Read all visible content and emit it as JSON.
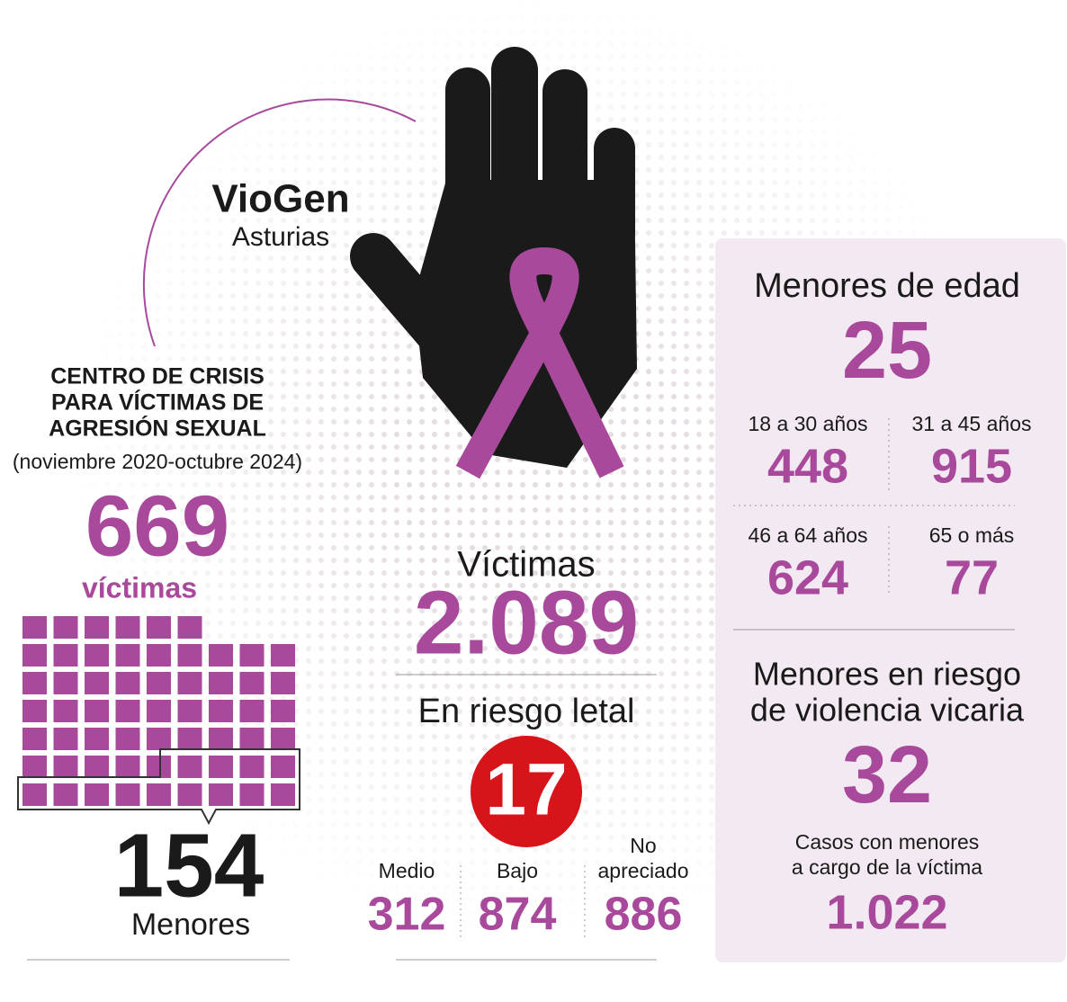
{
  "header": {
    "title": "VioGen",
    "subtitle": "Asturias"
  },
  "crisis_center": {
    "title_lines": [
      "CENTRO DE CRISIS",
      "PARA VÍCTIMAS DE",
      "AGRESIÓN SEXUAL"
    ],
    "period": "(noviembre 2020-octubre 2024)",
    "victims": "669",
    "victims_label": "víctimas",
    "minors": "154",
    "minors_label": "Menores"
  },
  "viogen": {
    "victims_label": "Víctimas",
    "victims": "2.089",
    "lethal_risk_label": "En riesgo letal",
    "lethal_risk": "17",
    "risk_levels": [
      {
        "label": [
          "Medio"
        ],
        "value": "312"
      },
      {
        "label": [
          "Bajo"
        ],
        "value": "874"
      },
      {
        "label": [
          "No",
          "apreciado"
        ],
        "value": "886"
      }
    ]
  },
  "minors_panel": {
    "title": "Menores de edad",
    "minors": "25",
    "age_groups": [
      {
        "label": "18 a 30 años",
        "value": "448"
      },
      {
        "label": "31 a 45 años",
        "value": "915"
      },
      {
        "label": "46 a 64 años",
        "value": "624"
      },
      {
        "label": "65 o más",
        "value": "77"
      }
    ],
    "vicarious": {
      "title_lines": [
        "Menores en riesgo",
        "de violencia vicaria"
      ],
      "value": "32",
      "cases_lines": [
        "Casos con menores",
        "a cargo de la víctima"
      ],
      "cases": "1.022"
    }
  }
}
